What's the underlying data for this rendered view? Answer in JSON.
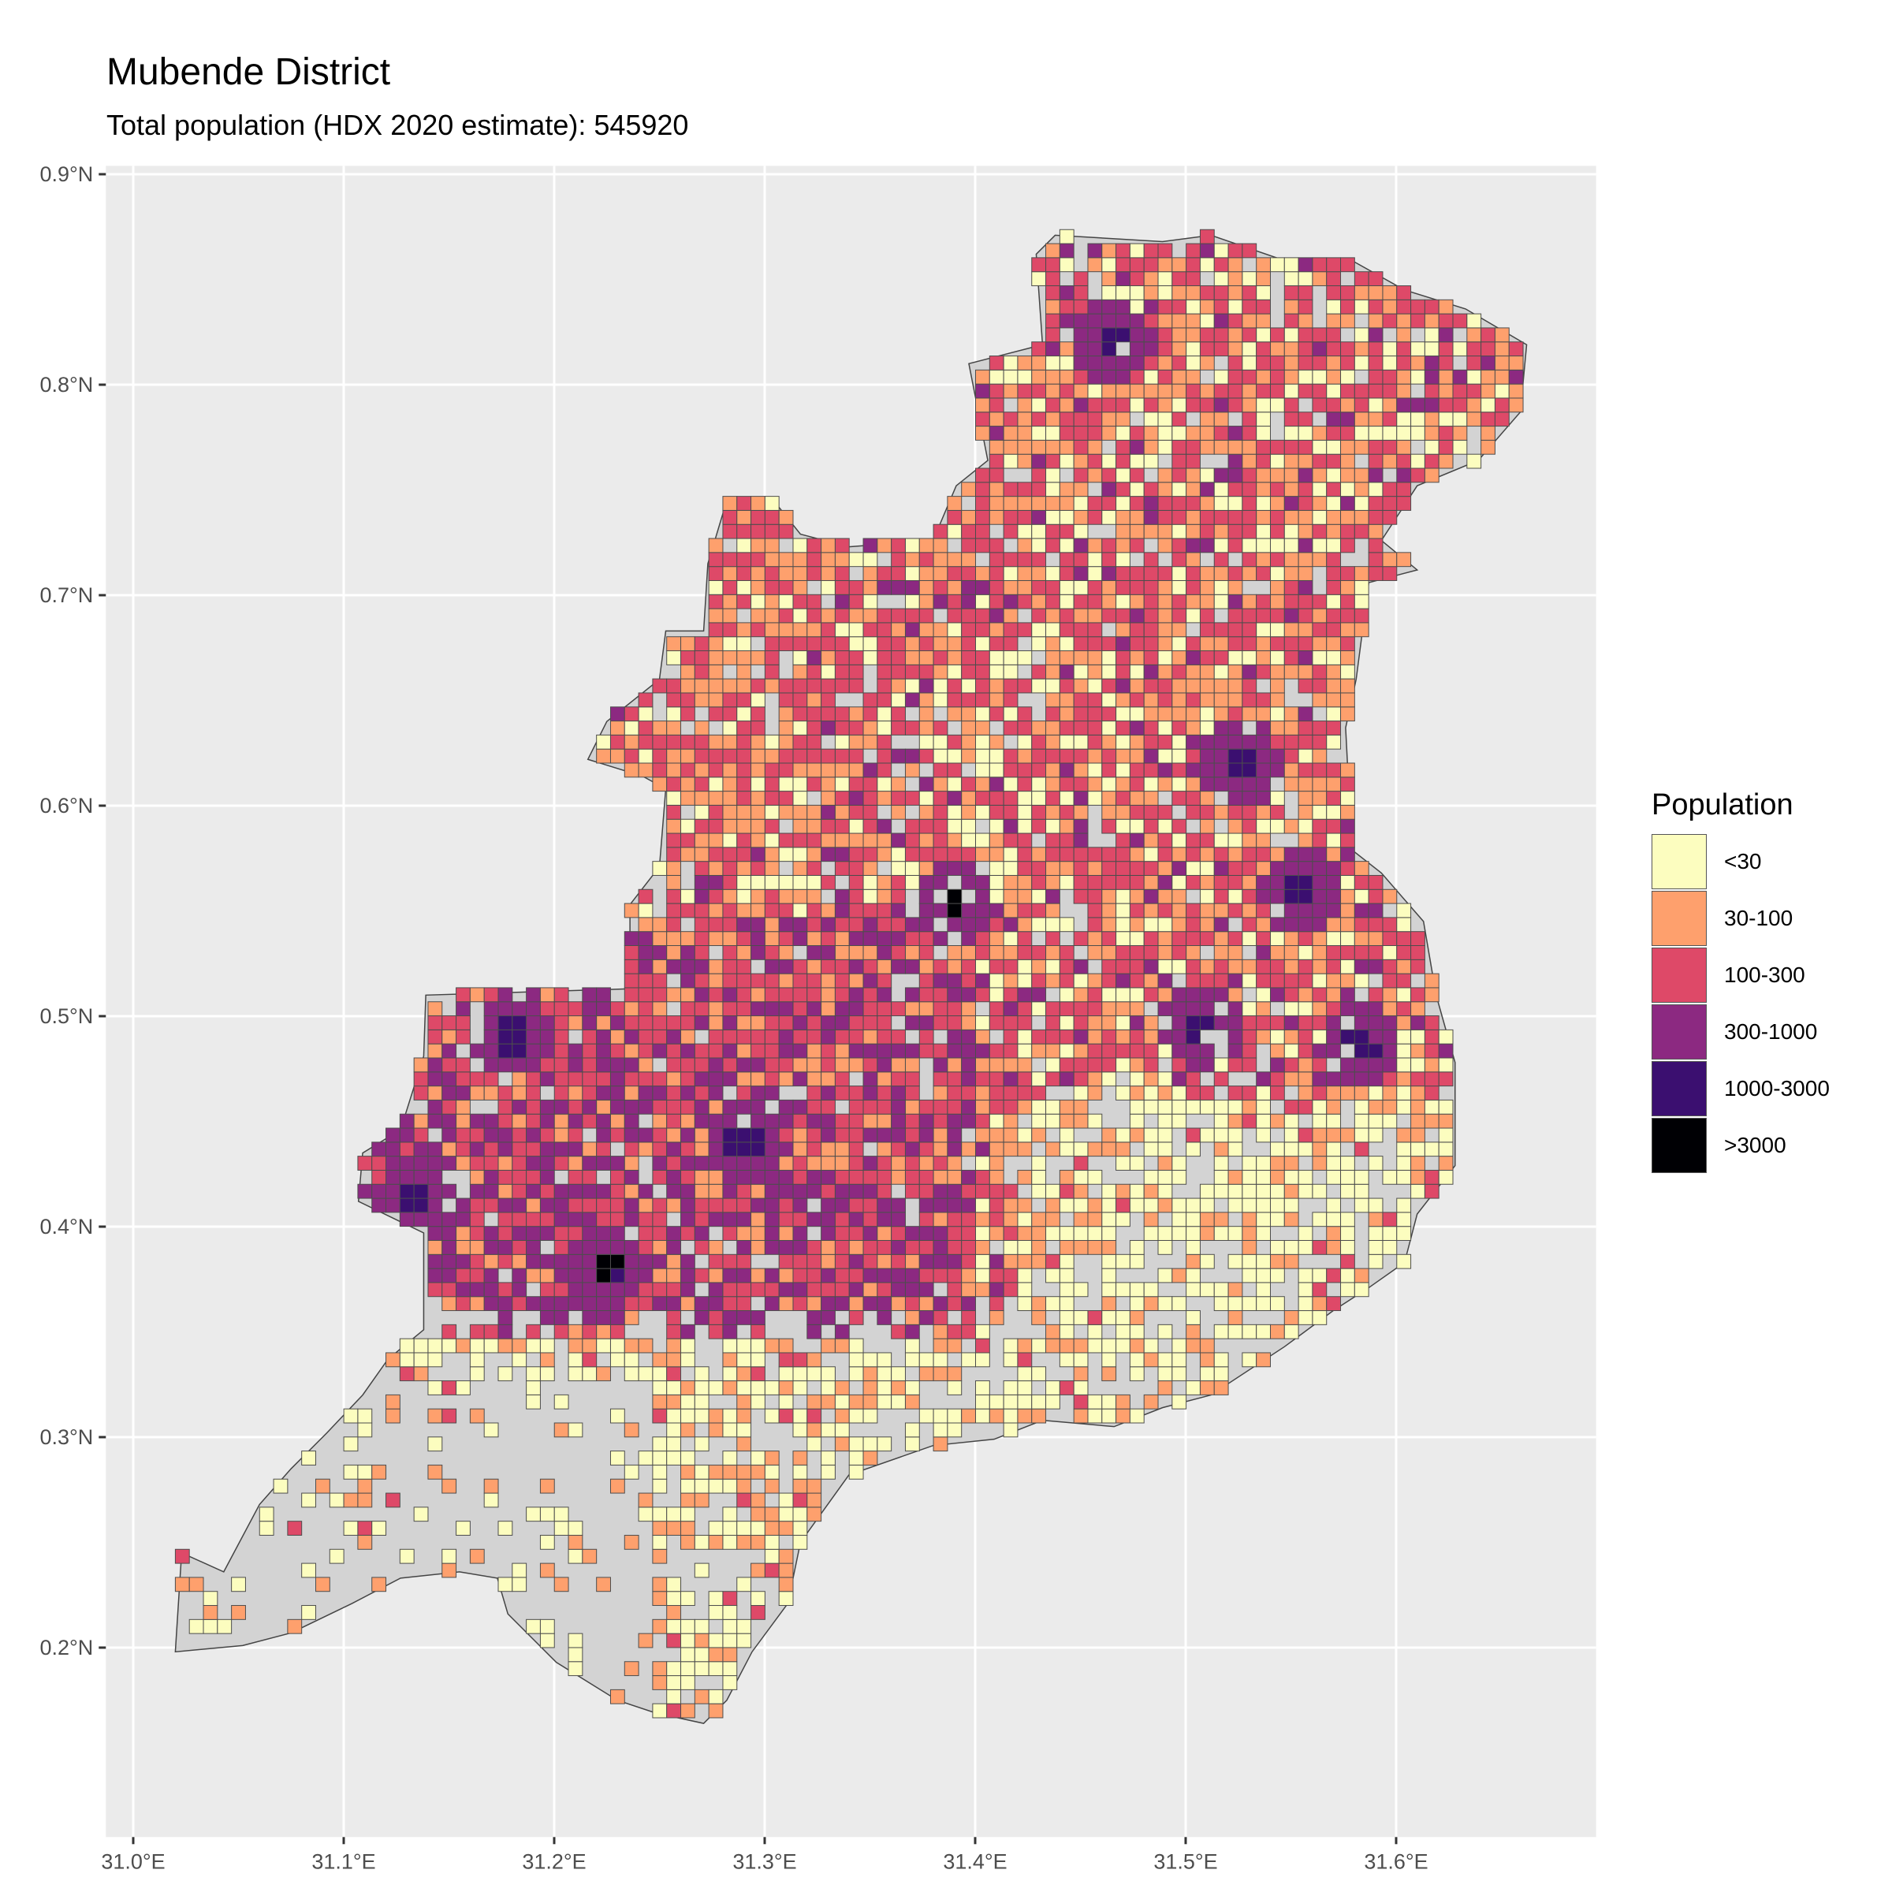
{
  "title": "Mubende District",
  "subtitle": "Total population (HDX 2020 estimate): 545920",
  "chart_data": {
    "type": "map",
    "x_ticks": [
      {
        "value": 31.0,
        "label": "31.0°E"
      },
      {
        "value": 31.1,
        "label": "31.1°E"
      },
      {
        "value": 31.2,
        "label": "31.2°E"
      },
      {
        "value": 31.3,
        "label": "31.3°E"
      },
      {
        "value": 31.4,
        "label": "31.4°E"
      },
      {
        "value": 31.5,
        "label": "31.5°E"
      },
      {
        "value": 31.6,
        "label": "31.6°E"
      }
    ],
    "y_ticks": [
      {
        "value": 0.2,
        "label": "0.2°N"
      },
      {
        "value": 0.3,
        "label": "0.3°N"
      },
      {
        "value": 0.4,
        "label": "0.4°N"
      },
      {
        "value": 0.5,
        "label": "0.5°N"
      },
      {
        "value": 0.6,
        "label": "0.6°N"
      },
      {
        "value": 0.7,
        "label": "0.7°N"
      },
      {
        "value": 0.8,
        "label": "0.8°N"
      },
      {
        "value": 0.9,
        "label": "0.9°N"
      }
    ],
    "xlim": [
      30.987,
      31.695
    ],
    "ylim": [
      0.11,
      0.904
    ],
    "cell_size_deg": 0.00667,
    "district_outline": [
      [
        31.02,
        0.198
      ],
      [
        31.023,
        0.245
      ],
      [
        31.043,
        0.236
      ],
      [
        31.06,
        0.268
      ],
      [
        31.075,
        0.285
      ],
      [
        31.092,
        0.302
      ],
      [
        31.109,
        0.32
      ],
      [
        31.121,
        0.337
      ],
      [
        31.138,
        0.351
      ],
      [
        31.138,
        0.397
      ],
      [
        31.107,
        0.412
      ],
      [
        31.109,
        0.435
      ],
      [
        31.127,
        0.446
      ],
      [
        31.138,
        0.481
      ],
      [
        31.139,
        0.51
      ],
      [
        31.236,
        0.513
      ],
      [
        31.236,
        0.553
      ],
      [
        31.25,
        0.571
      ],
      [
        31.253,
        0.608
      ],
      [
        31.242,
        0.614
      ],
      [
        31.216,
        0.622
      ],
      [
        31.225,
        0.64
      ],
      [
        31.25,
        0.66
      ],
      [
        31.253,
        0.683
      ],
      [
        31.271,
        0.683
      ],
      [
        31.273,
        0.715
      ],
      [
        31.282,
        0.745
      ],
      [
        31.305,
        0.744
      ],
      [
        31.317,
        0.729
      ],
      [
        31.34,
        0.723
      ],
      [
        31.38,
        0.726
      ],
      [
        31.391,
        0.752
      ],
      [
        31.406,
        0.764
      ],
      [
        31.397,
        0.81
      ],
      [
        31.432,
        0.819
      ],
      [
        31.429,
        0.862
      ],
      [
        31.438,
        0.871
      ],
      [
        31.489,
        0.868
      ],
      [
        31.512,
        0.871
      ],
      [
        31.547,
        0.859
      ],
      [
        31.579,
        0.859
      ],
      [
        31.604,
        0.845
      ],
      [
        31.633,
        0.836
      ],
      [
        31.662,
        0.819
      ],
      [
        31.659,
        0.787
      ],
      [
        31.639,
        0.764
      ],
      [
        31.61,
        0.752
      ],
      [
        31.593,
        0.726
      ],
      [
        31.61,
        0.712
      ],
      [
        31.587,
        0.706
      ],
      [
        31.581,
        0.66
      ],
      [
        31.576,
        0.637
      ],
      [
        31.579,
        0.579
      ],
      [
        31.593,
        0.568
      ],
      [
        31.613,
        0.545
      ],
      [
        31.619,
        0.51
      ],
      [
        31.628,
        0.478
      ],
      [
        31.628,
        0.429
      ],
      [
        31.61,
        0.406
      ],
      [
        31.604,
        0.383
      ],
      [
        31.587,
        0.371
      ],
      [
        31.57,
        0.36
      ],
      [
        31.547,
        0.343
      ],
      [
        31.512,
        0.32
      ],
      [
        31.489,
        0.314
      ],
      [
        31.466,
        0.305
      ],
      [
        31.432,
        0.308
      ],
      [
        31.409,
        0.299
      ],
      [
        31.38,
        0.296
      ],
      [
        31.34,
        0.282
      ],
      [
        31.317,
        0.25
      ],
      [
        31.311,
        0.221
      ],
      [
        31.294,
        0.198
      ],
      [
        31.282,
        0.175
      ],
      [
        31.271,
        0.164
      ],
      [
        31.248,
        0.169
      ],
      [
        31.23,
        0.175
      ],
      [
        31.201,
        0.193
      ],
      [
        31.178,
        0.216
      ],
      [
        31.173,
        0.233
      ],
      [
        31.155,
        0.236
      ],
      [
        31.127,
        0.233
      ],
      [
        31.104,
        0.221
      ],
      [
        31.075,
        0.207
      ],
      [
        31.052,
        0.201
      ]
    ],
    "hotspots": [
      [
        31.39,
        0.555
      ],
      [
        31.225,
        0.382
      ],
      [
        31.465,
        0.82
      ],
      [
        31.525,
        0.622
      ],
      [
        31.508,
        0.495
      ],
      [
        31.555,
        0.56
      ],
      [
        31.583,
        0.485
      ],
      [
        31.18,
        0.49
      ],
      [
        31.29,
        0.44
      ],
      [
        31.135,
        0.415
      ]
    ]
  },
  "legend": {
    "title": "Population",
    "items": [
      {
        "label": "<30",
        "color": "#FCFDBF"
      },
      {
        "label": "30-100",
        "color": "#FEA06D"
      },
      {
        "label": "100-300",
        "color": "#DE4968"
      },
      {
        "label": "300-1000",
        "color": "#8C2981"
      },
      {
        "label": "1000-3000",
        "color": "#3B0F70"
      },
      {
        "label": ">3000",
        "color": "#000004"
      }
    ]
  },
  "colors": {
    "panel": "#EBEBEB",
    "grid": "#FFFFFF",
    "district_fill": "#D3D3D3",
    "cell_stroke": "#4D4D4D"
  }
}
